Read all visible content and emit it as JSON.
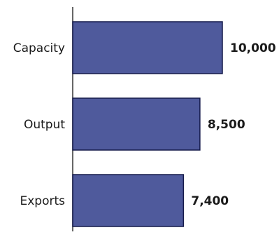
{
  "chart_data": {
    "type": "bar",
    "orientation": "horizontal",
    "title": "",
    "xlabel": "",
    "ylabel": "",
    "categories": [
      "Capacity",
      "Output",
      "Exports"
    ],
    "values": [
      10000,
      8500,
      7400
    ],
    "value_labels": [
      "10,000",
      "8,500",
      "7,400"
    ],
    "xlim": [
      0,
      10000
    ],
    "grid": false,
    "legend": false,
    "colors": {
      "bar": "#4f5a9c",
      "bar_stroke": "#151a4a",
      "axis": "#333333",
      "text": "#1a1a1a"
    }
  }
}
